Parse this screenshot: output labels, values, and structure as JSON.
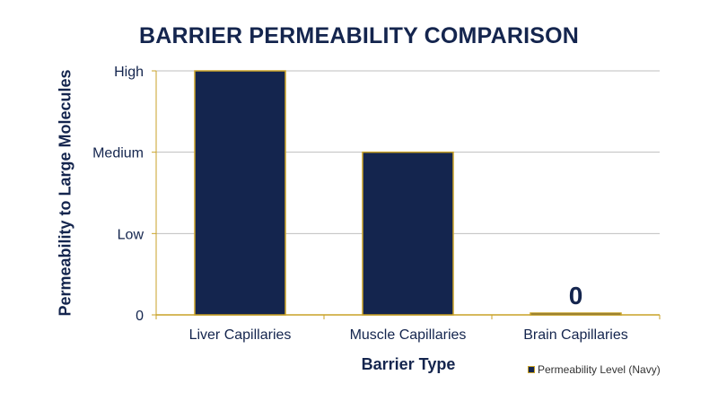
{
  "chart_data": {
    "type": "bar",
    "title": "BARRIER PERMEABILITY COMPARISON",
    "xlabel": "Barrier Type",
    "ylabel": "Permeability to Large Molecules",
    "categories": [
      "Liver Capillaries",
      "Muscle Capillaries",
      "Brain Capillaries"
    ],
    "y_ticks": [
      {
        "value": 0,
        "label": "0"
      },
      {
        "value": 1,
        "label": "Low"
      },
      {
        "value": 2,
        "label": "Medium"
      },
      {
        "value": 3,
        "label": "High"
      }
    ],
    "ylim": [
      0,
      3
    ],
    "series": [
      {
        "name": "Permeability Level (Navy)",
        "values": [
          3,
          2,
          0.02
        ]
      }
    ],
    "annotations": [
      {
        "category": "Brain Capillaries",
        "text": "0"
      }
    ],
    "grid": true,
    "legend_position": "bottom-right",
    "colors": {
      "bar": "#14254e",
      "bar_outline": "#c9a227",
      "text": "#14254e",
      "grid": "#bfbfbf",
      "axis": "#c9a227"
    }
  }
}
